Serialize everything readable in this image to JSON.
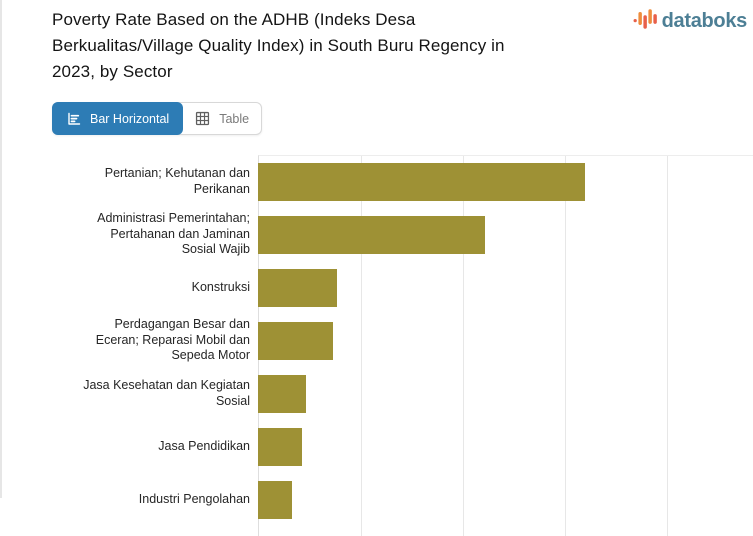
{
  "header": {
    "title": "Poverty Rate Based on the ADHB (Indeks Desa Berkualitas/Village Quality Index) in South Buru Regency in 2023, by Sector",
    "logo": {
      "text": "databoks",
      "text_color": "#4d7f95",
      "icon_colors": [
        "#e8604a",
        "#ee8c3c"
      ]
    }
  },
  "toolbar": {
    "buttons": [
      {
        "label": "Bar Horizontal",
        "icon": "bar-horizontal-chart-icon",
        "active": true,
        "active_bg": "#2d7cb5"
      },
      {
        "label": "Table",
        "icon": "table-icon",
        "active": false
      }
    ]
  },
  "chart_data": {
    "type": "bar",
    "orientation": "horizontal",
    "title": "Poverty Rate Based on the ADHB (Indeks Desa Berkualitas/Village Quality Index) in South Buru Regency in 2023, by Sector",
    "categories": [
      "Pertanian; Kehutanan dan Perikanan",
      "Administrasi Pemerintahan; Pertahanan dan Jaminan Sosial Wajib",
      "Konstruksi",
      "Perdagangan Besar dan Eceran; Reparasi Mobil dan Sepeda Motor",
      "Jasa Kesehatan dan Kegiatan Sosial",
      "Jasa Pendidikan",
      "Industri Pengolahan"
    ],
    "values_pct_of_visible_axis": [
      66.1,
      45.9,
      16.0,
      15.2,
      9.7,
      8.9,
      6.9
    ],
    "bar_color": "#9e9135",
    "gridlines": {
      "visible": true,
      "count": 4,
      "spacing_px": 102
    },
    "x_tick_labels_visible": false,
    "legend_position": "none"
  }
}
